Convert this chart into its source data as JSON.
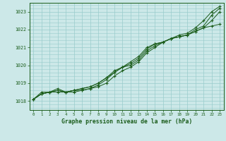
{
  "title": "Graphe pression niveau de la mer (hPa)",
  "x_labels": [
    0,
    1,
    2,
    3,
    4,
    5,
    6,
    7,
    8,
    9,
    10,
    11,
    12,
    13,
    14,
    15,
    16,
    17,
    18,
    19,
    20,
    21,
    22,
    23
  ],
  "ylim": [
    1017.5,
    1023.5
  ],
  "xlim": [
    -0.5,
    23.5
  ],
  "yticks": [
    1018,
    1019,
    1020,
    1021,
    1022,
    1023
  ],
  "background_color": "#cce8e8",
  "grid_color": "#99cccc",
  "line_color": "#1a5c1a",
  "series": [
    [
      1018.1,
      1018.5,
      1018.5,
      1018.6,
      1018.5,
      1018.6,
      1018.7,
      1018.8,
      1019.0,
      1019.3,
      1019.6,
      1019.9,
      1020.2,
      1020.5,
      1021.0,
      1021.2,
      1021.3,
      1021.5,
      1021.6,
      1021.7,
      1022.0,
      1022.2,
      1022.8,
      1023.2
    ],
    [
      1018.1,
      1018.4,
      1018.5,
      1018.5,
      1018.5,
      1018.5,
      1018.6,
      1018.7,
      1018.9,
      1019.2,
      1019.6,
      1019.9,
      1020.1,
      1020.4,
      1020.9,
      1021.2,
      1021.3,
      1021.5,
      1021.6,
      1021.7,
      1021.9,
      1022.1,
      1022.5,
      1023.0
    ],
    [
      1018.1,
      1018.4,
      1018.5,
      1018.7,
      1018.5,
      1018.6,
      1018.7,
      1018.8,
      1019.0,
      1019.3,
      1019.7,
      1019.9,
      1020.0,
      1020.3,
      1020.8,
      1021.1,
      1021.3,
      1021.5,
      1021.6,
      1021.7,
      1021.9,
      1022.1,
      1022.2,
      1022.3
    ],
    [
      1018.1,
      1018.4,
      1018.5,
      1018.6,
      1018.5,
      1018.6,
      1018.6,
      1018.7,
      1018.8,
      1019.0,
      1019.4,
      1019.7,
      1019.9,
      1020.2,
      1020.7,
      1021.0,
      1021.3,
      1021.5,
      1021.7,
      1021.8,
      1022.1,
      1022.5,
      1023.0,
      1023.3
    ]
  ]
}
